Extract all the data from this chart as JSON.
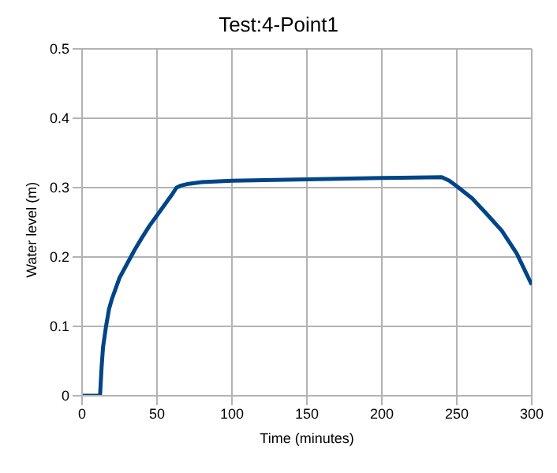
{
  "chart_data": {
    "type": "line",
    "title": "Test:4-Point1",
    "xlabel": "Time (minutes)",
    "ylabel": "Water level (m)",
    "x": [
      0,
      5,
      10,
      12,
      13,
      14,
      16,
      18,
      20,
      25,
      30,
      35,
      40,
      45,
      50,
      55,
      60,
      63,
      66,
      70,
      80,
      100,
      150,
      200,
      240,
      245,
      250,
      260,
      270,
      280,
      290,
      300
    ],
    "series": [
      {
        "color": "#004586",
        "values": [
          0,
          0,
          0,
          0,
          0.04,
          0.07,
          0.1,
          0.125,
          0.14,
          0.17,
          0.19,
          0.21,
          0.228,
          0.245,
          0.26,
          0.275,
          0.29,
          0.3,
          0.303,
          0.305,
          0.308,
          0.31,
          0.312,
          0.314,
          0.315,
          0.31,
          0.302,
          0.285,
          0.262,
          0.238,
          0.205,
          0.16
        ]
      }
    ],
    "xlim": [
      0,
      300
    ],
    "xticks": [
      0,
      50,
      100,
      150,
      200,
      250,
      300
    ],
    "ylim": [
      0,
      0.5
    ],
    "yticks": [
      0,
      0.1,
      0.2,
      0.3,
      0.4,
      0.5
    ],
    "grid": true,
    "marker": "none",
    "line_style": "solid"
  }
}
